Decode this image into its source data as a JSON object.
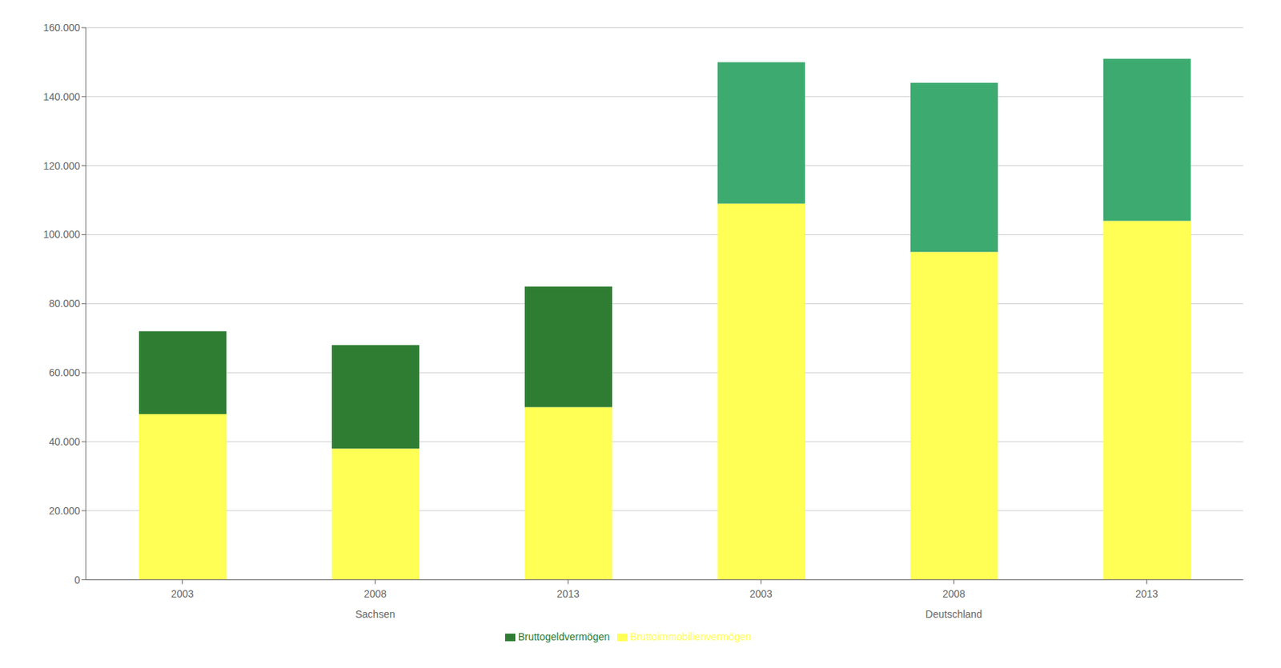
{
  "chart_data": {
    "type": "bar",
    "stacked": true,
    "categories": [
      "2003",
      "2008",
      "2013",
      "2003",
      "2008",
      "2013"
    ],
    "annotations": [
      "Sachsen",
      "Deutschland"
    ],
    "series": [
      {
        "name": "Bruttoimmobilienvermögen",
        "color": "#FFFF55",
        "values": [
          48000,
          38000,
          50000,
          109000,
          95000,
          104000
        ]
      },
      {
        "name": "Bruttogeldvermögen",
        "color": "#2E7D32",
        "colors": [
          "#2E7D32",
          "#2E7D32",
          "#2E7D32",
          "#3DAA70",
          "#3DAA70",
          "#3DAA70"
        ],
        "values": [
          24000,
          30000,
          35000,
          41000,
          49000,
          47000
        ]
      }
    ],
    "ylim": [
      0,
      160000
    ],
    "yticks": [
      0,
      {
        "value": 20000,
        "label": "20.000"
      },
      {
        "value": 40000,
        "label": "40.000"
      },
      {
        "value": 60000,
        "label": "60.000"
      },
      {
        "value": 80000,
        "label": "80.000"
      },
      {
        "value": 100000,
        "label": "100.000"
      },
      {
        "value": 120000,
        "label": "120.000"
      },
      {
        "value": 140000,
        "label": "140.000"
      },
      {
        "value": 160000,
        "label": "160.000"
      }
    ],
    "grid": true,
    "legend": "bottom"
  }
}
